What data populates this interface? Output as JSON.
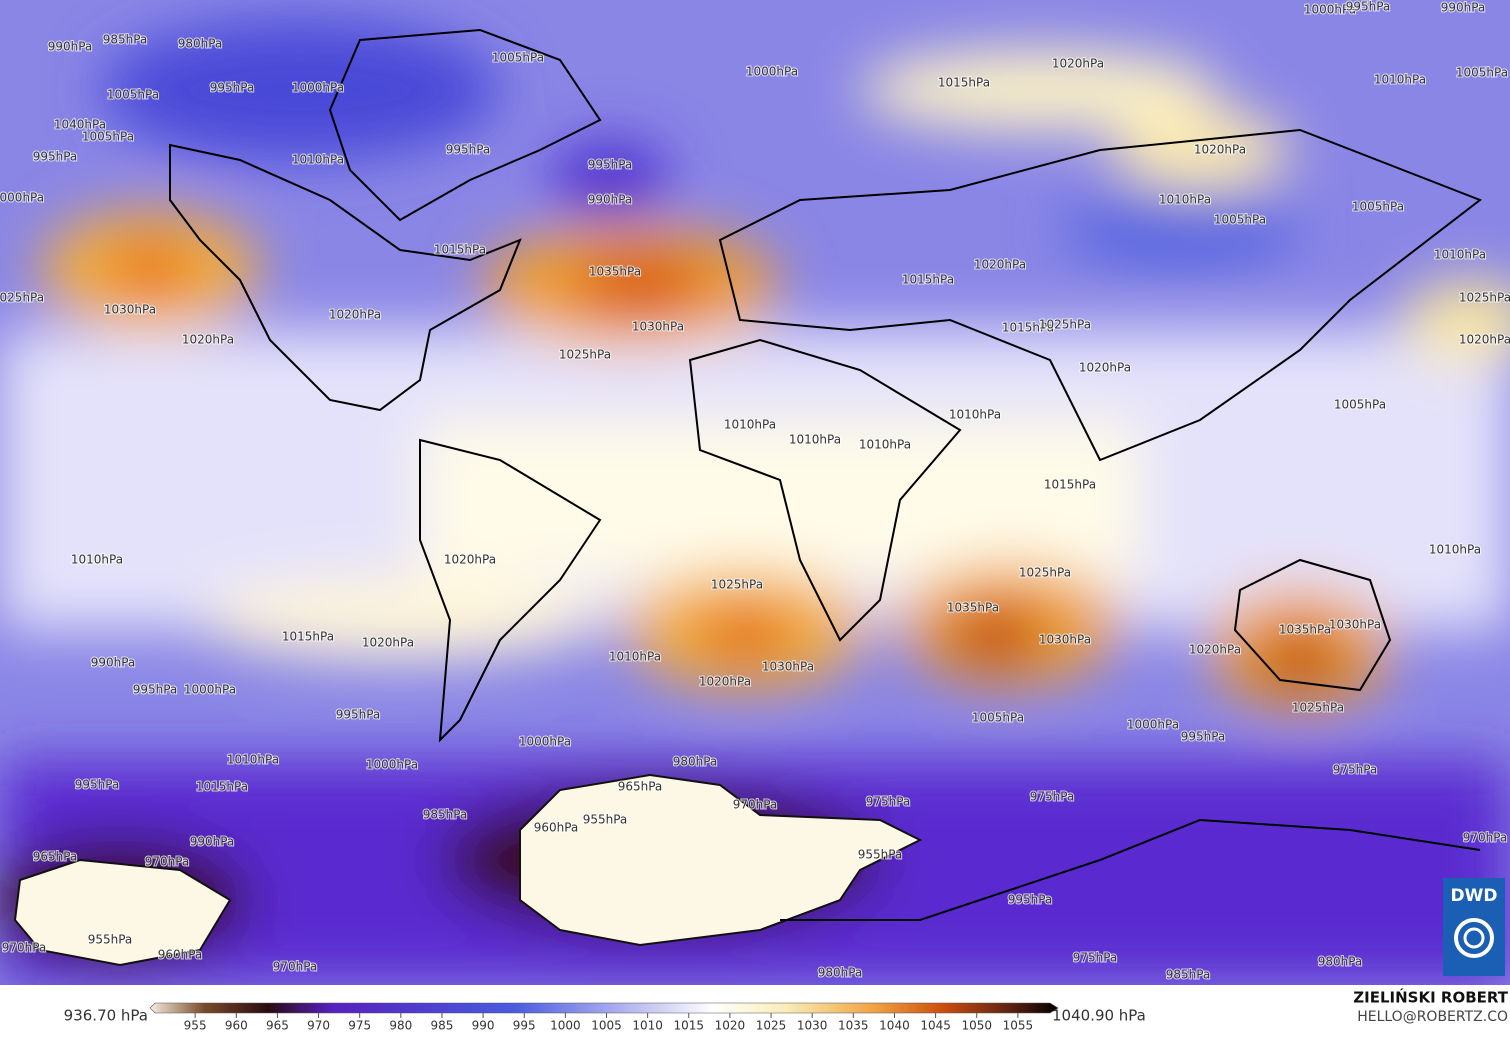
{
  "map": {
    "isobar_labels": [
      "990hPa",
      "985hPa",
      "980hPa",
      "1000hPa",
      "995hPa",
      "990hPa",
      "1005hPa",
      "1000hPa",
      "995hPa",
      "1000hPa",
      "1020hPa",
      "1015hPa",
      "1010hPa",
      "1005hPa",
      "1005hPa",
      "1040hPa",
      "1005hPa",
      "995hPa",
      "1010hPa",
      "995hPa",
      "995hPa",
      "990hPa",
      "1020hPa",
      "1000hPa",
      "1010hPa",
      "1005hPa",
      "1005hPa",
      "1010hPa",
      "1015hPa",
      "1020hPa",
      "1015hPa",
      "1035hPa",
      "1025hPa",
      "1030hPa",
      "1020hPa",
      "1020hPa",
      "1030hPa",
      "1025hPa",
      "1015hPa",
      "1025hPa",
      "1020hPa",
      "1025hPa",
      "1020hPa",
      "1005hPa",
      "1010hPa",
      "1010hPa",
      "1010hPa",
      "1010hPa",
      "1015hPa",
      "1010hPa",
      "1020hPa",
      "1025hPa",
      "1025hPa",
      "1010hPa",
      "1035hPa",
      "1030hPa",
      "1030hPa",
      "1035hPa",
      "1020hPa",
      "1015hPa",
      "1020hPa",
      "990hPa",
      "995hPa",
      "1000hPa",
      "1010hPa",
      "1030hPa",
      "1020hPa",
      "1025hPa",
      "1005hPa",
      "995hPa",
      "1000hPa",
      "995hPa",
      "1000hPa",
      "1010hPa",
      "1000hPa",
      "980hPa",
      "975hPa",
      "1015hPa",
      "995hPa",
      "965hPa",
      "970hPa",
      "975hPa",
      "975hPa",
      "985hPa",
      "960hPa",
      "955hPa",
      "990hPa",
      "955hPa",
      "970hPa",
      "965hPa",
      "970hPa",
      "995hPa",
      "955hPa",
      "960hPa",
      "970hPa",
      "970hPa",
      "980hPa",
      "975hPa",
      "980hPa",
      "985hPa"
    ],
    "colorbar": {
      "range": [
        950,
        1060
      ],
      "ticks": [
        955,
        960,
        965,
        970,
        975,
        980,
        985,
        990,
        995,
        1000,
        1005,
        1010,
        1015,
        1020,
        1025,
        1030,
        1035,
        1040,
        1045,
        1050,
        1055
      ],
      "min_label": "936.70 hPa",
      "max_label": "1040.90 hPa"
    },
    "author": "ZIELIŃSKI ROBERT",
    "contact": "HELLO@ROBERTZ.CO",
    "logo": "DWD"
  }
}
